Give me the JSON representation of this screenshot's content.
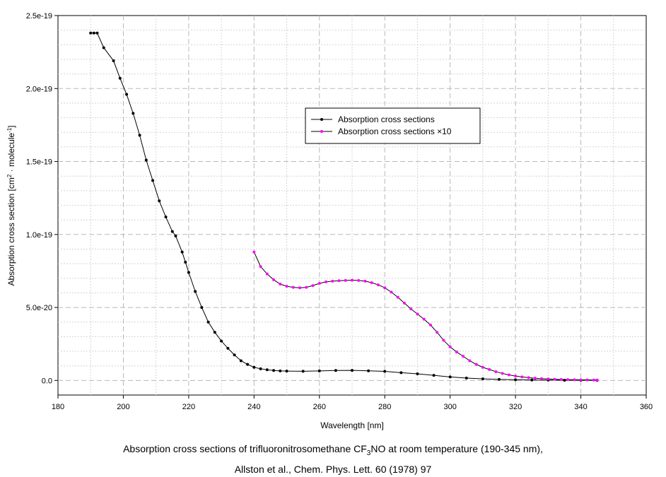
{
  "chart_data": {
    "type": "line",
    "xlabel": "Wavelength [nm]",
    "ylabel_main": "Absorption cross section [cm",
    "ylabel_sup1": "2",
    "ylabel_mid": " · molecule",
    "ylabel_sup2": "-1",
    "ylabel_end": "]",
    "xlim": [
      180,
      360
    ],
    "ylim": [
      -1e-20,
      2.5e-19
    ],
    "x_ticks": [
      180,
      200,
      220,
      240,
      260,
      280,
      300,
      320,
      340,
      360
    ],
    "x_tick_labels": [
      "180",
      "200",
      "220",
      "240",
      "260",
      "280",
      "300",
      "320",
      "340",
      "360"
    ],
    "y_ticks": [
      0,
      5e-20,
      1e-19,
      1.5e-19,
      2e-19,
      2.5e-19
    ],
    "y_tick_labels": [
      "0.0",
      "5.0e-20",
      "1.0e-19",
      "1.5e-19",
      "2.0e-19",
      "2.5e-19"
    ],
    "grid": true,
    "legend_position": "center-right",
    "series": [
      {
        "name": "Absorption cross sections",
        "color": "#000000",
        "marker_color": "#000000",
        "x": [
          190,
          191,
          192,
          194,
          197,
          199,
          201,
          203,
          205,
          207,
          209,
          211,
          213,
          215,
          216,
          218,
          219,
          220,
          222,
          224,
          226,
          228,
          230,
          232,
          234,
          236,
          238,
          240,
          242,
          244,
          246,
          248,
          250,
          255,
          260,
          265,
          270,
          275,
          280,
          285,
          290,
          295,
          300,
          305,
          310,
          315,
          320,
          325,
          330,
          335,
          340,
          345
        ],
        "y": [
          2.38e-19,
          2.38e-19,
          2.38e-19,
          2.28e-19,
          2.19e-19,
          2.07e-19,
          1.96e-19,
          1.83e-19,
          1.68e-19,
          1.51e-19,
          1.37e-19,
          1.23e-19,
          1.12e-19,
          1.02e-19,
          9.9e-20,
          8.8e-20,
          8.1e-20,
          7.4e-20,
          6.1e-20,
          5e-20,
          4e-20,
          3.3e-20,
          2.7e-20,
          2.2e-20,
          1.75e-20,
          1.35e-20,
          1.1e-20,
          9e-21,
          8e-21,
          7.3e-21,
          6.8e-21,
          6.5e-21,
          6.4e-21,
          6.3e-21,
          6.5e-21,
          6.8e-21,
          6.9e-21,
          6.6e-21,
          6.2e-21,
          5.3e-21,
          4.5e-21,
          3.5e-21,
          2.4e-21,
          1.6e-21,
          1.1e-21,
          7e-22,
          4.5e-22,
          3e-22,
          2e-22,
          1.2e-22,
          8e-23,
          5e-23
        ]
      },
      {
        "name": "Absorption cross sections ×10",
        "color": "#000000",
        "marker_color": "#ff00ff",
        "x": [
          240,
          242,
          244,
          246,
          248,
          250,
          252,
          254,
          256,
          258,
          260,
          262,
          264,
          266,
          268,
          270,
          272,
          274,
          276,
          278,
          280,
          282,
          284,
          286,
          288,
          290,
          292,
          294,
          296,
          298,
          300,
          302,
          304,
          306,
          308,
          310,
          312,
          314,
          316,
          318,
          320,
          322,
          324,
          326,
          328,
          330,
          332,
          334,
          336,
          338,
          340,
          342,
          344,
          345
        ],
        "y": [
          8.8e-20,
          7.8e-20,
          7.3e-20,
          6.9e-20,
          6.6e-20,
          6.45e-20,
          6.38e-20,
          6.35e-20,
          6.38e-20,
          6.5e-20,
          6.65e-20,
          6.75e-20,
          6.8e-20,
          6.83e-20,
          6.85e-20,
          6.87e-20,
          6.85e-20,
          6.8e-20,
          6.7e-20,
          6.55e-20,
          6.35e-20,
          6.05e-20,
          5.7e-20,
          5.3e-20,
          4.9e-20,
          4.55e-20,
          4.2e-20,
          3.8e-20,
          3.3e-20,
          2.75e-20,
          2.3e-20,
          1.95e-20,
          1.65e-20,
          1.35e-20,
          1.1e-20,
          9e-21,
          7.5e-21,
          6e-21,
          4.8e-21,
          3.8e-21,
          3e-21,
          2.4e-21,
          1.9e-21,
          1.5e-21,
          1.2e-21,
          1e-21,
          8e-22,
          6.5e-22,
          5.5e-22,
          4.5e-22,
          4e-22,
          3.5e-22,
          3e-22,
          3e-22
        ]
      }
    ]
  },
  "caption": {
    "line1_prefix": "Absorption cross sections of trifluoronitrosomethane CF",
    "line1_sub": "3",
    "line1_suffix": "NO at room temperature (190-345 nm),",
    "line2": "Allston et al., Chem. Phys. Lett. 60 (1978) 97"
  }
}
